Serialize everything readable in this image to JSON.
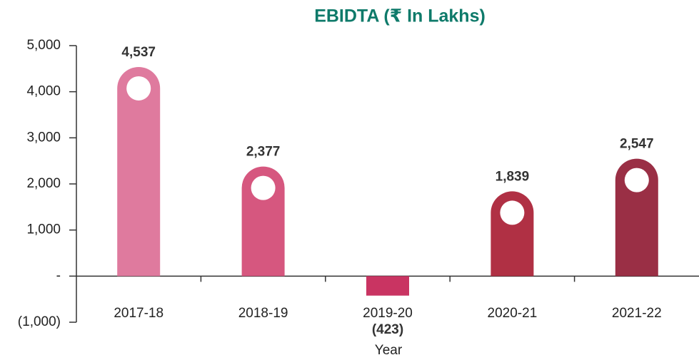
{
  "chart_data": {
    "type": "bar",
    "title": "EBIDTA (₹ In Lakhs)",
    "x_label": "Year",
    "categories": [
      "2017-18",
      "2018-19",
      "2019-20",
      "2020-21",
      "2021-22"
    ],
    "values": [
      4537,
      2377,
      -423,
      1839,
      2547
    ],
    "value_labels": [
      "4,537",
      "2,377",
      "(423)",
      "1,839",
      "2,547"
    ],
    "colors": [
      "#df7a9e",
      "#d6577f",
      "#c93462",
      "#b03044",
      "#9a2f45"
    ],
    "ylim": [
      -1000,
      5000
    ],
    "yticks": [
      {
        "value": -1000,
        "label": "(1,000)"
      },
      {
        "value": 0,
        "label": "-"
      },
      {
        "value": 1000,
        "label": "1,000"
      },
      {
        "value": 2000,
        "label": "2,000"
      },
      {
        "value": 3000,
        "label": "3,000"
      },
      {
        "value": 4000,
        "label": "4,000"
      },
      {
        "value": 5000,
        "label": "5,000"
      }
    ],
    "grid": false
  }
}
